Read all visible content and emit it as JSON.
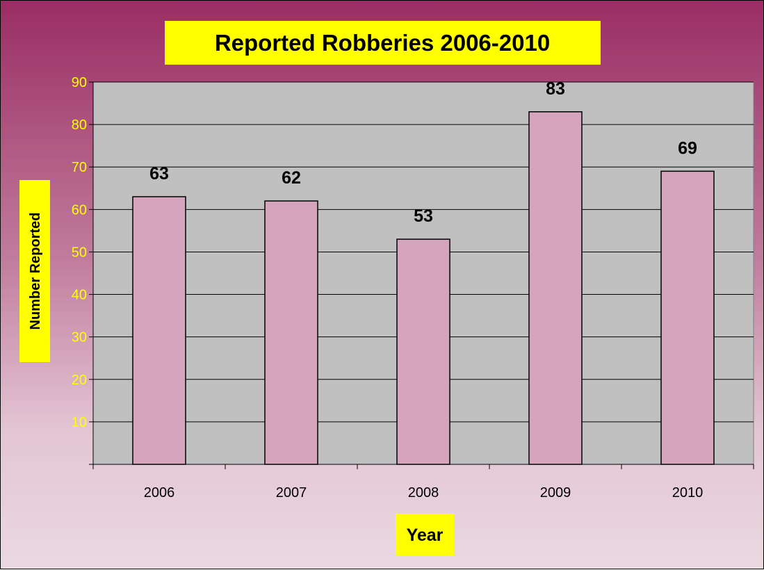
{
  "chart_data": {
    "type": "bar",
    "title": "Reported Robberies 2006-2010",
    "xlabel": "Year",
    "ylabel": "Number Reported",
    "categories": [
      "2006",
      "2007",
      "2008",
      "2009",
      "2010"
    ],
    "values": [
      63,
      62,
      53,
      83,
      69
    ],
    "data_labels": [
      "63",
      "62",
      "53",
      "83",
      "69"
    ],
    "ylim": [
      0,
      90
    ],
    "yticks": [
      10,
      20,
      30,
      40,
      50,
      60,
      70,
      80,
      90
    ],
    "ytick_labels": [
      "10",
      "20",
      "30",
      "40",
      "50",
      "60",
      "70",
      "80",
      "90"
    ],
    "grid": true,
    "legend": "none",
    "colors": {
      "bar_fill": "#d4a5bc",
      "plot_background": "#c0c0c0",
      "title_background": "#ffff00",
      "ytick_color": "#ffff00"
    }
  }
}
